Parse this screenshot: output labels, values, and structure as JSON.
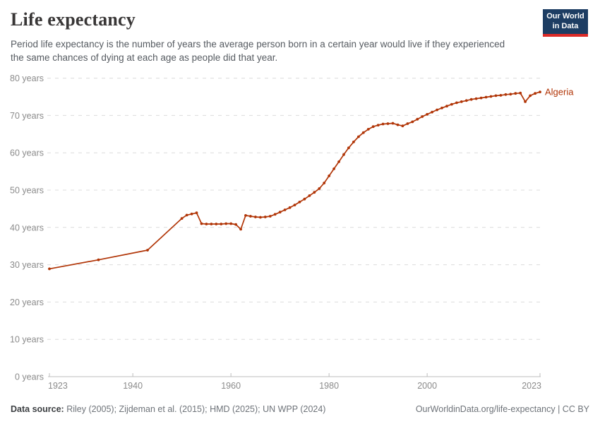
{
  "header": {
    "title": "Life expectancy",
    "subtitle": "Period life expectancy is the number of years the average person born in a certain year would live if they experienced the same chances of dying at each age as people did that year.",
    "logo": {
      "line1": "Our World",
      "line2": "in Data",
      "bg_color": "#1d3d63",
      "bar_color": "#dc2a27"
    }
  },
  "chart_data": {
    "type": "line",
    "title": "Life expectancy",
    "entity": "Algeria",
    "unit": "years",
    "xlim": [
      1923,
      2023
    ],
    "ylim": [
      0,
      80
    ],
    "x_ticks": [
      1923,
      1940,
      1960,
      1980,
      2000,
      2023
    ],
    "y_ticks": [
      0,
      10,
      20,
      30,
      40,
      50,
      60,
      70,
      80
    ],
    "y_tick_suffix": " years",
    "grid": "horizontal-dashed",
    "legend_position": "end-of-line-label",
    "colors": {
      "line": "#b13507",
      "grid": "#dcdcdc",
      "axis": "#bdbdbd",
      "tick_label": "#8b8b8b"
    },
    "series": [
      {
        "name": "Algeria",
        "color": "#b13507",
        "points": [
          [
            1923,
            28.9
          ],
          [
            1933,
            31.3
          ],
          [
            1943,
            33.9
          ],
          [
            1950,
            42.4
          ],
          [
            1951,
            43.3
          ],
          [
            1952,
            43.6
          ],
          [
            1953,
            43.9
          ],
          [
            1954,
            41.0
          ],
          [
            1955,
            40.9
          ],
          [
            1956,
            40.9
          ],
          [
            1957,
            40.9
          ],
          [
            1958,
            40.9
          ],
          [
            1959,
            41.0
          ],
          [
            1960,
            41.0
          ],
          [
            1961,
            40.8
          ],
          [
            1962,
            39.5
          ],
          [
            1963,
            43.2
          ],
          [
            1964,
            43.0
          ],
          [
            1965,
            42.8
          ],
          [
            1966,
            42.7
          ],
          [
            1967,
            42.8
          ],
          [
            1968,
            43.0
          ],
          [
            1969,
            43.5
          ],
          [
            1970,
            44.1
          ],
          [
            1971,
            44.7
          ],
          [
            1972,
            45.3
          ],
          [
            1973,
            46.0
          ],
          [
            1974,
            46.8
          ],
          [
            1975,
            47.6
          ],
          [
            1976,
            48.5
          ],
          [
            1977,
            49.4
          ],
          [
            1978,
            50.4
          ],
          [
            1979,
            51.9
          ],
          [
            1980,
            53.8
          ],
          [
            1981,
            55.7
          ],
          [
            1982,
            57.6
          ],
          [
            1983,
            59.5
          ],
          [
            1984,
            61.3
          ],
          [
            1985,
            62.9
          ],
          [
            1986,
            64.3
          ],
          [
            1987,
            65.4
          ],
          [
            1988,
            66.3
          ],
          [
            1989,
            67.0
          ],
          [
            1990,
            67.4
          ],
          [
            1991,
            67.7
          ],
          [
            1992,
            67.8
          ],
          [
            1993,
            67.9
          ],
          [
            1994,
            67.5
          ],
          [
            1995,
            67.2
          ],
          [
            1996,
            67.8
          ],
          [
            1997,
            68.3
          ],
          [
            1998,
            69.0
          ],
          [
            1999,
            69.7
          ],
          [
            2000,
            70.3
          ],
          [
            2001,
            70.9
          ],
          [
            2002,
            71.5
          ],
          [
            2003,
            72.0
          ],
          [
            2004,
            72.5
          ],
          [
            2005,
            73.0
          ],
          [
            2006,
            73.4
          ],
          [
            2007,
            73.7
          ],
          [
            2008,
            74.0
          ],
          [
            2009,
            74.3
          ],
          [
            2010,
            74.5
          ],
          [
            2011,
            74.7
          ],
          [
            2012,
            74.9
          ],
          [
            2013,
            75.1
          ],
          [
            2014,
            75.3
          ],
          [
            2015,
            75.4
          ],
          [
            2016,
            75.6
          ],
          [
            2017,
            75.7
          ],
          [
            2018,
            75.9
          ],
          [
            2019,
            76.0
          ],
          [
            2020,
            73.7
          ],
          [
            2021,
            75.3
          ],
          [
            2022,
            75.9
          ],
          [
            2023,
            76.3
          ]
        ]
      }
    ]
  },
  "footer": {
    "datasource_label": "Data source:",
    "datasource_text": " Riley (2005); Zijdeman et al. (2015); HMD (2025); UN WPP (2024)",
    "attribution": "OurWorldinData.org/life-expectancy | CC BY"
  }
}
